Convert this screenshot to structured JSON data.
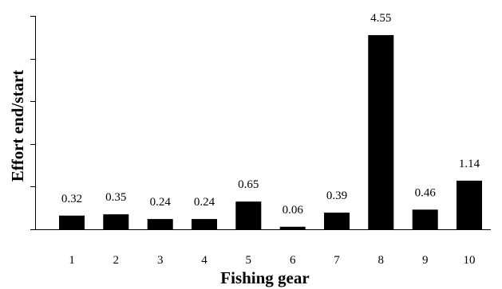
{
  "chart_data": {
    "type": "bar",
    "title": "",
    "xlabel": "Fishing gear",
    "ylabel": "Effort end/start",
    "categories": [
      "1",
      "2",
      "3",
      "4",
      "5",
      "6",
      "7",
      "8",
      "9",
      "10"
    ],
    "values": [
      0.32,
      0.35,
      0.24,
      0.24,
      0.65,
      0.06,
      0.39,
      4.55,
      0.46,
      1.14
    ],
    "value_labels": [
      "0.32",
      "0.35",
      "0.24",
      "0.24",
      "0.65",
      "0.06",
      "0.39",
      "4.55",
      "0.46",
      "1.14"
    ],
    "ylim": [
      0,
      5
    ],
    "y_tick_values": [
      0,
      1,
      2,
      3,
      4,
      5
    ],
    "y_tick_labels_shown": false,
    "grid": false,
    "legend": "none",
    "bar_color": "#000000"
  }
}
